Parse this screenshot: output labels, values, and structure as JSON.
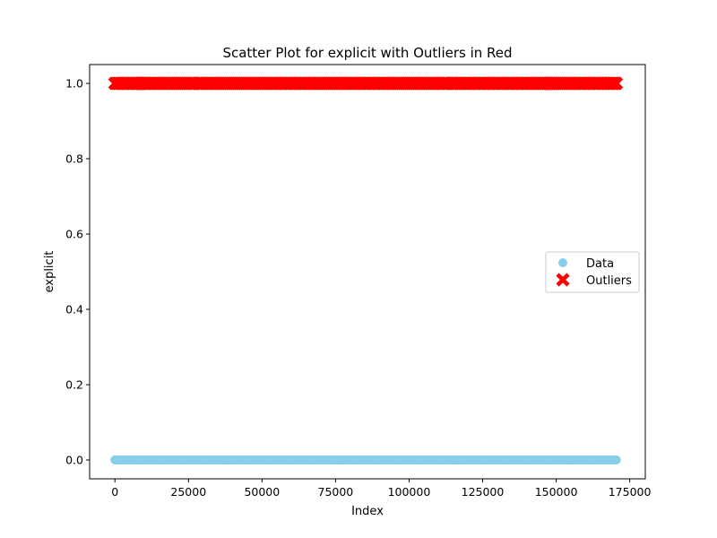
{
  "chart_data": {
    "type": "scatter",
    "title": "Scatter Plot for explicit with Outliers in Red",
    "xlabel": "Index",
    "ylabel": "explicit",
    "xlim": [
      -8600,
      180300
    ],
    "ylim": [
      -0.05,
      1.05
    ],
    "x_ticks": [
      0,
      25000,
      50000,
      75000,
      100000,
      125000,
      150000,
      175000
    ],
    "x_tick_labels": [
      "0",
      "25000",
      "50000",
      "75000",
      "100000",
      "125000",
      "150000",
      "175000"
    ],
    "y_ticks": [
      0.0,
      0.2,
      0.4,
      0.6,
      0.8,
      1.0
    ],
    "y_tick_labels": [
      "0.0",
      "0.2",
      "0.4",
      "0.6",
      "0.8",
      "1.0"
    ],
    "grid": false,
    "legend_position": "center-right",
    "series": [
      {
        "name": "Data",
        "marker": "circle",
        "color": "#87ceeb",
        "y": 0,
        "x_segments": [
          [
            0,
            170600
          ]
        ]
      },
      {
        "name": "Outliers",
        "marker": "x",
        "color": "#ff0000",
        "y": 1,
        "x_segments": [
          [
            0,
            9000
          ],
          [
            9000,
            27500
          ],
          [
            28500,
            46000
          ],
          [
            46500,
            63500
          ],
          [
            64000,
            81000
          ],
          [
            81500,
            98500
          ],
          [
            99000,
            113500
          ],
          [
            114500,
            132500
          ],
          [
            133000,
            147000
          ],
          [
            147500,
            165000
          ],
          [
            165500,
            170600
          ]
        ]
      }
    ]
  }
}
